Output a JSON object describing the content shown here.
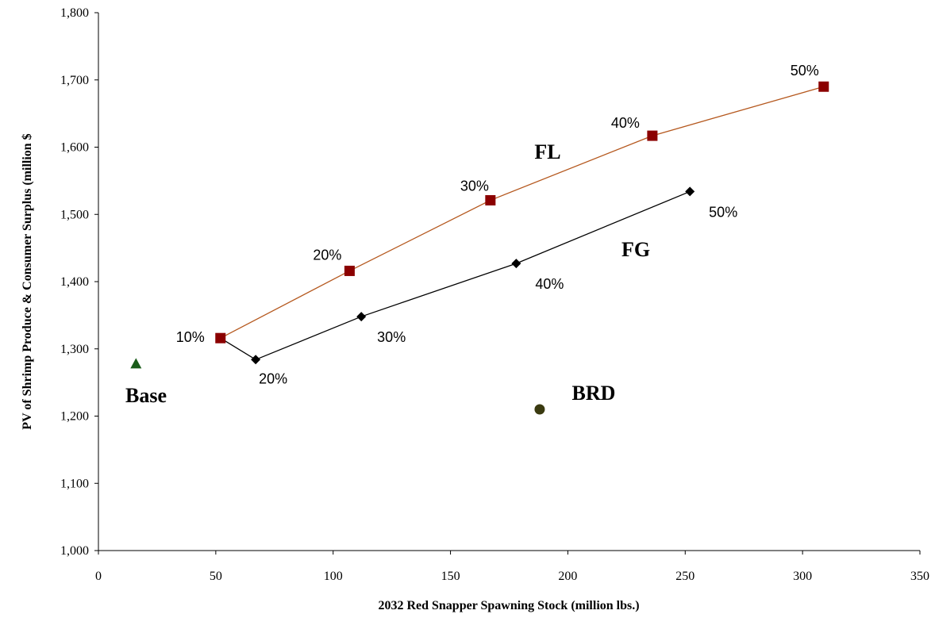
{
  "chart_data": {
    "type": "scatter",
    "xlabel": "2032 Red Snapper Spawning Stock (million lbs.)",
    "ylabel": "PV of Shrimp Produce & Consumer Surplus (million $",
    "xlim": [
      0,
      350
    ],
    "ylim": [
      1000,
      1800
    ],
    "x_ticks": [
      0,
      50,
      100,
      150,
      200,
      250,
      300,
      350
    ],
    "x_tick_labels": [
      "0",
      "50",
      "100",
      "150",
      "200",
      "250",
      "300",
      "350"
    ],
    "y_ticks": [
      1000,
      1100,
      1200,
      1300,
      1400,
      1500,
      1600,
      1700,
      1800
    ],
    "y_tick_labels": [
      "1,000",
      "1,100",
      "1,200",
      "1,300",
      "1,400",
      "1,500",
      "1,600",
      "1,700",
      "1,800"
    ],
    "grid": false,
    "series": [
      {
        "name": "FL",
        "color": "#8b0000",
        "line_color": "#b5581e",
        "marker": "square",
        "x": [
          52,
          107,
          167,
          236,
          309
        ],
        "y": [
          1316,
          1416,
          1521,
          1617,
          1690
        ],
        "point_labels": [
          "10%",
          "20%",
          "30%",
          "40%",
          "50%"
        ]
      },
      {
        "name": "FG",
        "color": "#000000",
        "line_color": "#000000",
        "marker": "diamond",
        "x": [
          52,
          67,
          112,
          178,
          252
        ],
        "y": [
          1316,
          1284,
          1348,
          1427,
          1534
        ],
        "point_labels": [
          "",
          "20%",
          "30%",
          "40%",
          "50%"
        ]
      },
      {
        "name": "Base",
        "color": "#1a5c1a",
        "marker": "triangle",
        "x": [
          16
        ],
        "y": [
          1278
        ],
        "point_labels": [
          ""
        ]
      },
      {
        "name": "BRD",
        "color": "#3a3a10",
        "marker": "circle",
        "x": [
          188
        ],
        "y": [
          1210
        ],
        "point_labels": [
          ""
        ]
      }
    ]
  }
}
